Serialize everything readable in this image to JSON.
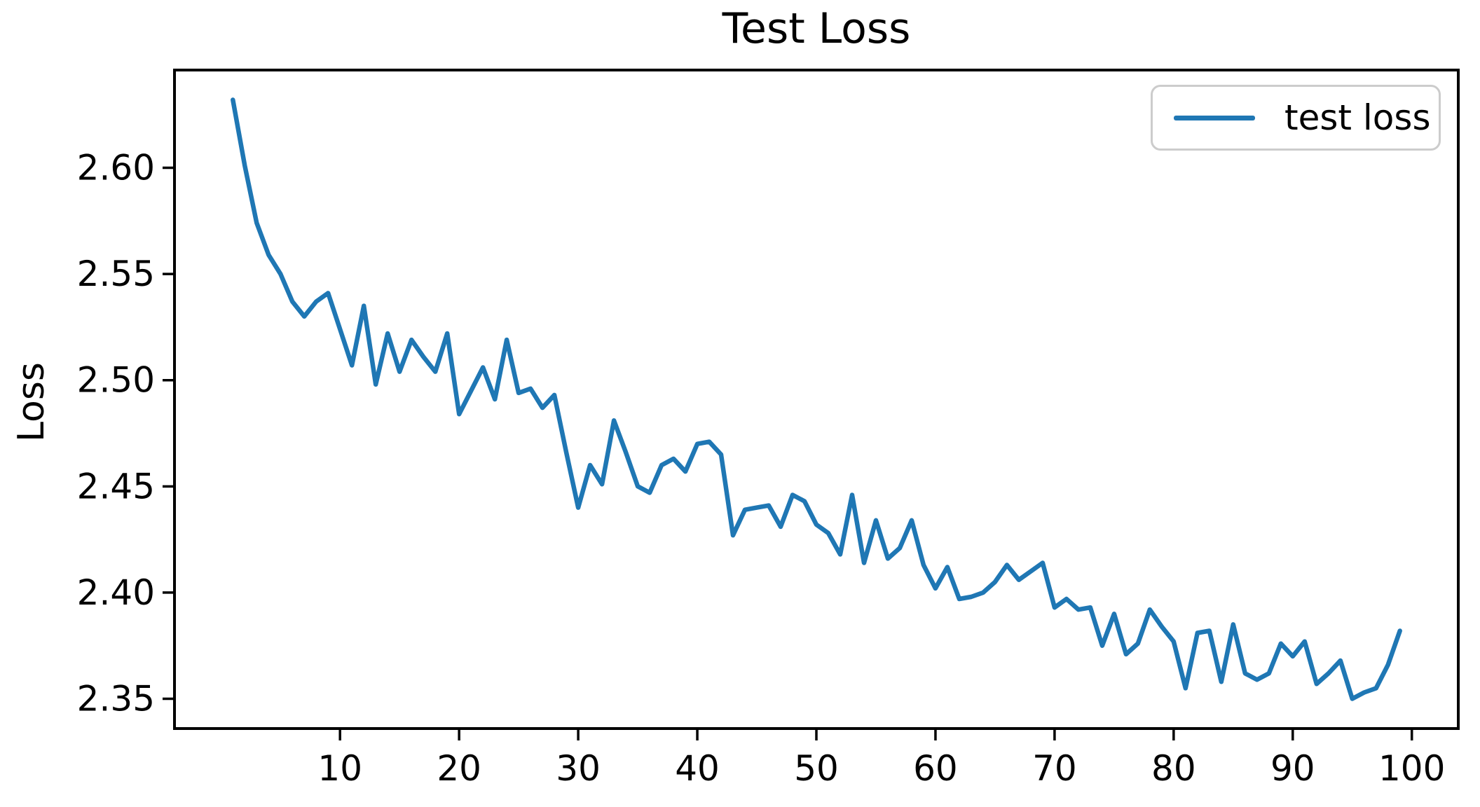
{
  "chart_data": {
    "type": "line",
    "title": "Test Loss",
    "xlabel": "",
    "ylabel": "Loss",
    "grid": false,
    "legend_position": "upper right",
    "line_color": "#1f77b4",
    "axis_color": "#000000",
    "xlim": [
      -3.9,
      103.9
    ],
    "ylim": [
      2.336,
      2.646
    ],
    "x_ticks": [
      10,
      20,
      30,
      40,
      50,
      60,
      70,
      80,
      90,
      100
    ],
    "y_ticks": [
      2.35,
      2.4,
      2.45,
      2.5,
      2.55,
      2.6
    ],
    "series": [
      {
        "name": "test loss",
        "color": "#1f77b4",
        "x_start": 1,
        "x_step": 1,
        "values": [
          2.632,
          2.601,
          2.574,
          2.559,
          2.55,
          2.537,
          2.53,
          2.537,
          2.541,
          2.524,
          2.507,
          2.535,
          2.498,
          2.522,
          2.504,
          2.519,
          2.511,
          2.504,
          2.522,
          2.484,
          2.495,
          2.506,
          2.491,
          2.519,
          2.494,
          2.496,
          2.487,
          2.493,
          2.466,
          2.44,
          2.46,
          2.451,
          2.481,
          2.466,
          2.45,
          2.447,
          2.46,
          2.463,
          2.457,
          2.47,
          2.471,
          2.465,
          2.427,
          2.439,
          2.44,
          2.441,
          2.431,
          2.446,
          2.443,
          2.432,
          2.428,
          2.418,
          2.446,
          2.414,
          2.434,
          2.416,
          2.421,
          2.434,
          2.413,
          2.402,
          2.412,
          2.397,
          2.398,
          2.4,
          2.405,
          2.413,
          2.406,
          2.41,
          2.414,
          2.393,
          2.397,
          2.392,
          2.393,
          2.375,
          2.39,
          2.371,
          2.376,
          2.392,
          2.384,
          2.377,
          2.355,
          2.381,
          2.382,
          2.358,
          2.385,
          2.362,
          2.359,
          2.362,
          2.376,
          2.37,
          2.377,
          2.357,
          2.362,
          2.368,
          2.35,
          2.353,
          2.355,
          2.366,
          2.382
        ]
      }
    ]
  }
}
